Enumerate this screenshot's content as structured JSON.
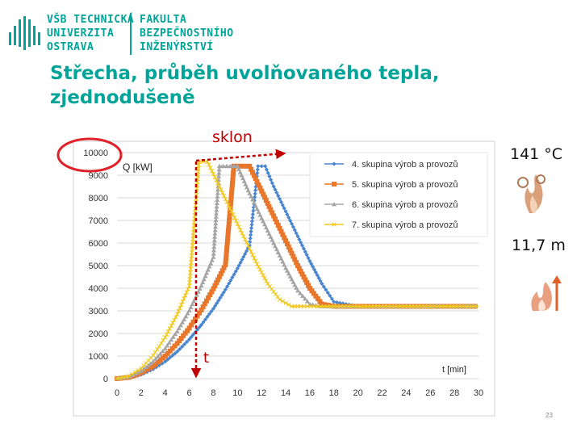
{
  "header": {
    "logo_line1": "VŠB TECHNICKÁ",
    "logo_line2": "UNIVERZITA",
    "logo_line3": "OSTRAVA",
    "faculty_line1": "FAKULTA",
    "faculty_line2": "BEZPEČNOSTNÍHO",
    "faculty_line3": "INŽENÝRSTVÍ",
    "brand_color": "#00a499"
  },
  "title": "Střecha, průběh uvolňovaného tepla, zjednodušeně",
  "annotations": {
    "slope_label": "sklon",
    "time_marker": "t",
    "temperature": "141 °C",
    "height": "11,7 m",
    "temperature_icon": "fire-spray-icon",
    "height_icon": "flame-arrow-icon"
  },
  "page_number": "23",
  "chart_data": {
    "type": "line",
    "ylabel": "Q [kW]",
    "xlabel": "t [min]",
    "xlim": [
      0,
      30
    ],
    "ylim": [
      0,
      10000
    ],
    "x_ticks": [
      0,
      2,
      4,
      6,
      8,
      10,
      12,
      14,
      16,
      18,
      20,
      22,
      24,
      26,
      28,
      30
    ],
    "y_ticks": [
      0,
      1000,
      2000,
      3000,
      4000,
      5000,
      6000,
      7000,
      8000,
      9000,
      10000
    ],
    "legend_position": "top-right",
    "series": [
      {
        "name": "4. skupina výrob a provozů",
        "color": "#4a86cf",
        "marker": "diamond",
        "x": [
          0,
          1,
          2,
          3,
          4,
          5,
          6,
          7,
          8,
          9,
          10,
          11,
          11.7,
          12.3,
          13,
          14,
          15,
          16,
          17,
          18,
          19,
          20,
          30
        ],
        "y": [
          0,
          40,
          180,
          420,
          760,
          1200,
          1740,
          2380,
          3100,
          3940,
          4880,
          5900,
          9400,
          9400,
          8500,
          7400,
          6300,
          5200,
          4200,
          3400,
          3300,
          3200,
          3200
        ]
      },
      {
        "name": "5. skupina výrob a provozů",
        "color": "#e8762b",
        "marker": "square",
        "x": [
          0,
          1,
          2,
          3,
          4,
          5,
          6,
          7,
          8,
          9,
          9.7,
          11,
          12,
          13,
          14,
          15,
          16,
          17,
          18,
          30
        ],
        "y": [
          0,
          60,
          250,
          560,
          1000,
          1560,
          2240,
          3040,
          3980,
          5040,
          9400,
          9400,
          8300,
          7200,
          6100,
          5000,
          4000,
          3300,
          3200,
          3200
        ]
      },
      {
        "name": "6. skupina výrob a provozů",
        "color": "#a5a5a5",
        "marker": "triangle",
        "x": [
          0,
          1,
          2,
          3,
          4,
          5,
          6,
          7,
          8,
          8.5,
          10,
          11,
          12,
          13,
          14,
          15,
          16,
          17,
          30
        ],
        "y": [
          0,
          80,
          340,
          760,
          1340,
          2100,
          3020,
          4120,
          5380,
          9400,
          9400,
          8200,
          7100,
          6000,
          4900,
          3900,
          3300,
          3200,
          3200
        ]
      },
      {
        "name": "7. skupina výrob a provozů",
        "color": "#f2c81e",
        "marker": "x",
        "x": [
          0,
          1,
          2,
          3,
          4,
          5,
          6,
          6.8,
          7.5,
          8.5,
          9.5,
          10.5,
          11.5,
          12.5,
          13.5,
          14.5,
          15.5,
          30
        ],
        "y": [
          0,
          110,
          460,
          1030,
          1830,
          2850,
          4100,
          9600,
          9600,
          8500,
          7400,
          6300,
          5200,
          4200,
          3500,
          3200,
          3200,
          3200
        ]
      }
    ]
  }
}
